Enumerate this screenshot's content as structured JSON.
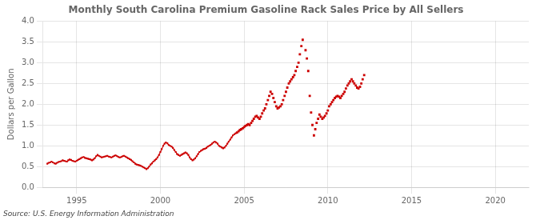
{
  "chart_data": {
    "type": "line",
    "title": "Monthly South Carolina Premium Gasoline Rack Sales Price by All Sellers",
    "y_label": "Dollars per Gallon",
    "annotation": "Source: U.S. Energy Information Administration",
    "xlim": [
      1993.0,
      2022.0
    ],
    "ylim": [
      0.0,
      4.0
    ],
    "xticks": [
      1995,
      2000,
      2005,
      2010,
      2015,
      2020
    ],
    "yticks": [
      {
        "value": 0.0,
        "label": "0.0"
      },
      0.5,
      {
        "value": 1.0,
        "label": "1.0"
      },
      1.5,
      {
        "value": 2.0,
        "label": "2.0"
      },
      2.5,
      {
        "value": 3.0,
        "label": "3.0"
      },
      3.5,
      {
        "value": 4.0,
        "label": "4.0"
      }
    ],
    "grid": true,
    "series": [
      {
        "type": "line",
        "marker": "square",
        "line_style": "solid",
        "color": "#cc0000",
        "x": [
          1993.25,
          1993.33,
          1993.42,
          1993.5,
          1993.58,
          1993.67,
          1993.75,
          1993.83,
          1993.92,
          1994.0,
          1994.08,
          1994.17,
          1994.25,
          1994.33,
          1994.42,
          1994.5,
          1994.58,
          1994.67,
          1994.75,
          1994.83,
          1994.92,
          1995.0,
          1995.08,
          1995.17,
          1995.25,
          1995.33,
          1995.42,
          1995.5,
          1995.58,
          1995.67,
          1995.75,
          1995.83,
          1995.92,
          1996.0,
          1996.08,
          1996.17,
          1996.25,
          1996.33,
          1996.42,
          1996.5,
          1996.58,
          1996.67,
          1996.75,
          1996.83,
          1996.92,
          1997.0,
          1997.08,
          1997.17,
          1997.25,
          1997.33,
          1997.42,
          1997.5,
          1997.58,
          1997.67,
          1997.75,
          1997.83,
          1997.92,
          1998.0,
          1998.08,
          1998.17,
          1998.25,
          1998.33,
          1998.42,
          1998.5,
          1998.58,
          1998.67,
          1998.75,
          1998.83,
          1998.92,
          1999.0,
          1999.08,
          1999.17,
          1999.25,
          1999.33,
          1999.42,
          1999.5,
          1999.58,
          1999.67,
          1999.75,
          1999.83,
          1999.92,
          2000.0,
          2000.08,
          2000.17,
          2000.25,
          2000.33,
          2000.42,
          2000.5,
          2000.58,
          2000.67,
          2000.75,
          2000.83,
          2000.92,
          2001.0,
          2001.08,
          2001.17,
          2001.25,
          2001.33,
          2001.42,
          2001.5,
          2001.58,
          2001.67,
          2001.75,
          2001.83,
          2001.92,
          2002.0,
          2002.08,
          2002.17,
          2002.25,
          2002.33,
          2002.42,
          2002.5,
          2002.58,
          2002.67,
          2002.75,
          2002.83,
          2002.92,
          2003.0,
          2003.08,
          2003.17,
          2003.25,
          2003.33,
          2003.42,
          2003.5,
          2003.58,
          2003.67,
          2003.75,
          2003.83,
          2003.92,
          2004.0,
          2004.08,
          2004.17,
          2004.25,
          2004.33,
          2004.42,
          2004.5
        ],
        "values": [
          0.57,
          0.59,
          0.6,
          0.62,
          0.6,
          0.58,
          0.57,
          0.59,
          0.61,
          0.62,
          0.63,
          0.65,
          0.64,
          0.63,
          0.62,
          0.65,
          0.67,
          0.66,
          0.64,
          0.63,
          0.62,
          0.64,
          0.66,
          0.68,
          0.7,
          0.72,
          0.73,
          0.71,
          0.7,
          0.69,
          0.68,
          0.67,
          0.65,
          0.67,
          0.7,
          0.75,
          0.78,
          0.76,
          0.74,
          0.72,
          0.73,
          0.74,
          0.75,
          0.76,
          0.74,
          0.73,
          0.72,
          0.74,
          0.76,
          0.77,
          0.75,
          0.73,
          0.72,
          0.73,
          0.75,
          0.76,
          0.74,
          0.72,
          0.7,
          0.68,
          0.66,
          0.63,
          0.6,
          0.57,
          0.55,
          0.54,
          0.53,
          0.52,
          0.5,
          0.48,
          0.46,
          0.44,
          0.46,
          0.5,
          0.55,
          0.58,
          0.62,
          0.65,
          0.68,
          0.72,
          0.78,
          0.85,
          0.92,
          1.0,
          1.05,
          1.08,
          1.06,
          1.02,
          1.0,
          0.98,
          0.95,
          0.9,
          0.85,
          0.8,
          0.78,
          0.76,
          0.78,
          0.8,
          0.82,
          0.84,
          0.82,
          0.78,
          0.72,
          0.68,
          0.65,
          0.67,
          0.7,
          0.75,
          0.8,
          0.85,
          0.88,
          0.9,
          0.92,
          0.93,
          0.95,
          0.98,
          1.0,
          1.02,
          1.05,
          1.08,
          1.1,
          1.08,
          1.05,
          1.0,
          0.98,
          0.96,
          0.94,
          0.96,
          1.0,
          1.05,
          1.1,
          1.15,
          1.2,
          1.25,
          1.28,
          1.3
        ]
      },
      {
        "type": "scatter",
        "marker": "square",
        "color": "#cc0000",
        "x": [
          2004.58,
          2004.67,
          2004.75,
          2004.83,
          2004.92,
          2005.0,
          2005.08,
          2005.17,
          2005.25,
          2005.33,
          2005.42,
          2005.5,
          2005.58,
          2005.67,
          2005.75,
          2005.83,
          2005.92,
          2006.0,
          2006.08,
          2006.17,
          2006.25,
          2006.33,
          2006.42,
          2006.5,
          2006.58,
          2006.67,
          2006.75,
          2006.83,
          2006.92,
          2007.0,
          2007.08,
          2007.17,
          2007.25,
          2007.33,
          2007.42,
          2007.5,
          2007.58,
          2007.67,
          2007.75,
          2007.83,
          2007.92,
          2008.0,
          2008.08,
          2008.17,
          2008.25,
          2008.33,
          2008.42,
          2008.5,
          2008.67,
          2008.75,
          2008.83,
          2008.92,
          2009.0,
          2009.08,
          2009.17,
          2009.25,
          2009.33,
          2009.42,
          2009.5,
          2009.58,
          2009.67,
          2009.75,
          2009.83,
          2009.92,
          2010.0,
          2010.08,
          2010.17,
          2010.25,
          2010.33,
          2010.42,
          2010.5,
          2010.58,
          2010.67,
          2010.75,
          2010.83,
          2010.92,
          2011.0,
          2011.08,
          2011.17,
          2011.25,
          2011.33,
          2011.42,
          2011.5,
          2011.58,
          2011.67,
          2011.75,
          2011.83,
          2011.92,
          2012.0,
          2012.08,
          2012.17
        ],
        "values": [
          1.32,
          1.35,
          1.38,
          1.4,
          1.42,
          1.45,
          1.48,
          1.5,
          1.52,
          1.5,
          1.55,
          1.6,
          1.65,
          1.7,
          1.72,
          1.68,
          1.65,
          1.7,
          1.78,
          1.85,
          1.9,
          2.0,
          2.1,
          2.2,
          2.3,
          2.25,
          2.15,
          2.05,
          1.95,
          1.9,
          1.92,
          1.95,
          2.0,
          2.1,
          2.2,
          2.3,
          2.4,
          2.5,
          2.55,
          2.6,
          2.65,
          2.7,
          2.8,
          2.9,
          3.0,
          3.2,
          3.4,
          3.55,
          3.3,
          3.1,
          2.8,
          2.2,
          1.8,
          1.5,
          1.25,
          1.4,
          1.55,
          1.65,
          1.75,
          1.7,
          1.65,
          1.68,
          1.72,
          1.78,
          1.85,
          1.95,
          2.0,
          2.05,
          2.1,
          2.15,
          2.18,
          2.2,
          2.18,
          2.15,
          2.2,
          2.25,
          2.3,
          2.38,
          2.45,
          2.5,
          2.55,
          2.6,
          2.55,
          2.5,
          2.45,
          2.4,
          2.38,
          2.42,
          2.5,
          2.6,
          2.7
        ]
      }
    ]
  }
}
